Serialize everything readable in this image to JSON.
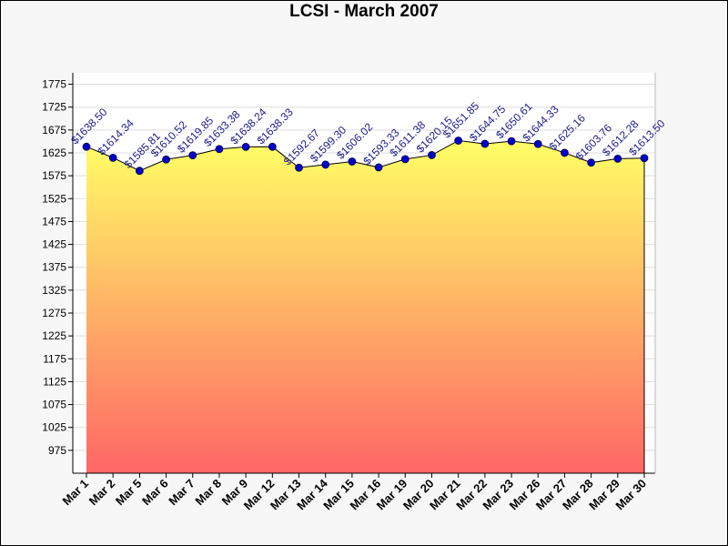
{
  "chart_data": {
    "type": "area",
    "title": "LCSI - March 2007",
    "xlabel": "",
    "ylabel": "",
    "ylim": [
      925,
      1800
    ],
    "yticks": [
      975,
      1025,
      1075,
      1125,
      1175,
      1225,
      1275,
      1325,
      1375,
      1425,
      1475,
      1525,
      1575,
      1625,
      1675,
      1725,
      1775
    ],
    "grid": true,
    "categories": [
      "Mar 1",
      "Mar 2",
      "Mar 5",
      "Mar 6",
      "Mar 7",
      "Mar 8",
      "Mar 9",
      "Mar 12",
      "Mar 13",
      "Mar 14",
      "Mar 15",
      "Mar 16",
      "Mar 19",
      "Mar 20",
      "Mar 21",
      "Mar 22",
      "Mar 23",
      "Mar 26",
      "Mar 27",
      "Mar 28",
      "Mar 29",
      "Mar 30"
    ],
    "values": [
      1638.5,
      1614.34,
      1585.81,
      1610.52,
      1619.85,
      1633.38,
      1638.24,
      1638.33,
      1592.67,
      1599.3,
      1606.02,
      1593.33,
      1611.38,
      1620.15,
      1651.85,
      1644.75,
      1650.61,
      1644.33,
      1625.16,
      1603.76,
      1612.28,
      1613.5
    ],
    "data_labels": [
      "$1638.50",
      "$1614.34",
      "$1585.81",
      "$1610.52",
      "$1619.85",
      "$1633.38",
      "$1638.24",
      "$1638.33",
      "$1592.67",
      "$1599.30",
      "$1606.02",
      "$1593.33",
      "$1611.38",
      "$1620.15",
      "$1651.85",
      "$1644.75",
      "$1650.61",
      "$1644.33",
      "$1625.16",
      "$1603.76",
      "$1612.28",
      "$1613.50"
    ],
    "colors": {
      "fill_top": "#ffff66",
      "fill_bottom": "#ff6666",
      "marker": "#0000cc",
      "line": "#000000",
      "label": "#1a1a8c"
    }
  }
}
